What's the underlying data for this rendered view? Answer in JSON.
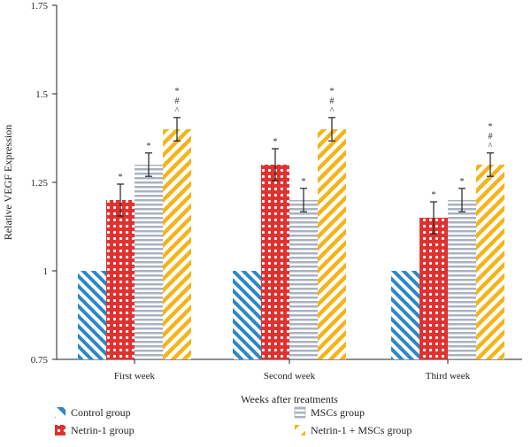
{
  "chart_data": {
    "type": "bar",
    "title": "",
    "xlabel": "Weeks after treatments",
    "ylabel": "Relative VEGF Expression",
    "ylim": [
      0.75,
      1.75
    ],
    "yticks": [
      0.75,
      1,
      1.25,
      1.5,
      1.75
    ],
    "ytick_labels": [
      "0.75",
      "1",
      "1.25",
      "1.5",
      "1.75"
    ],
    "categories": [
      "First week",
      "Second week",
      "Third week"
    ],
    "series": [
      {
        "name": "Control group",
        "color": "#2b87c9",
        "pattern": "diag-left",
        "values": [
          1.0,
          1.0,
          1.0
        ],
        "errors": [
          0,
          0,
          0
        ],
        "annotations": [
          [],
          [],
          []
        ]
      },
      {
        "name": "Netrin-1 group",
        "color": "#e0312f",
        "pattern": "dots",
        "values": [
          1.2,
          1.3,
          1.15
        ],
        "errors": [
          0.045,
          0.045,
          0.045
        ],
        "annotations": [
          [
            "*"
          ],
          [
            "*"
          ],
          [
            "*"
          ]
        ]
      },
      {
        "name": "MSCs group",
        "color": "#a9b2bf",
        "pattern": "horizontal",
        "values": [
          1.3,
          1.2,
          1.2
        ],
        "errors": [
          0.033,
          0.033,
          0.033
        ],
        "annotations": [
          [
            "*"
          ],
          [
            "*"
          ],
          [
            "*"
          ]
        ]
      },
      {
        "name": "Netrin-1 + MSCs group",
        "color": "#f4b41a",
        "pattern": "diag-right",
        "values": [
          1.4,
          1.4,
          1.3
        ],
        "errors": [
          0.033,
          0.033,
          0.033
        ],
        "annotations": [
          [
            "*",
            "#",
            "^"
          ],
          [
            "*",
            "#",
            "^"
          ],
          [
            "*",
            "#",
            "^"
          ]
        ]
      }
    ],
    "legend_position": "bottom"
  }
}
